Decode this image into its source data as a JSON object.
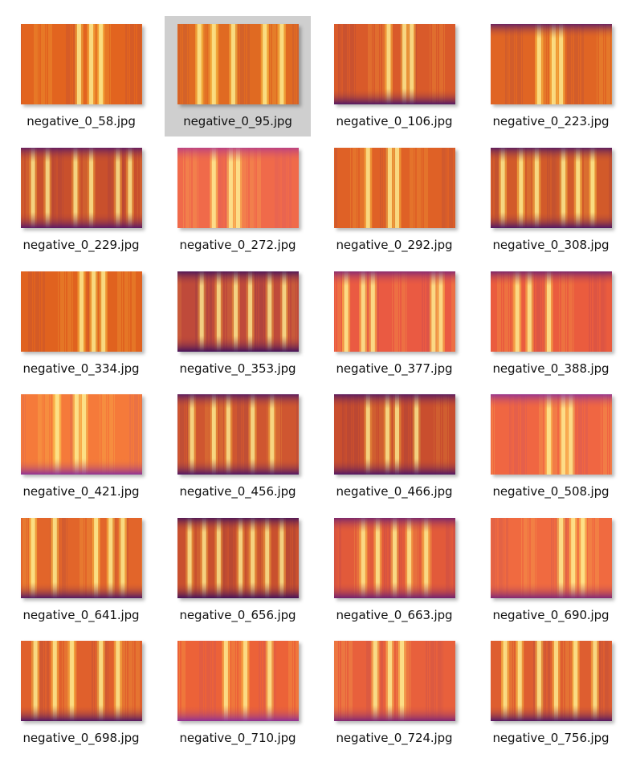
{
  "window": {
    "view": "large-icons-thumbnail-grid"
  },
  "files": [
    {
      "name": "negative_0_58.jpg",
      "selected": false,
      "thumbnail_icon": "spectrogram-thumbnail-icon",
      "palette": {
        "base": "#e2641f",
        "bright": "#ffd24a",
        "dark": "#6a1f6e"
      },
      "bands": [
        0.48,
        0.58,
        0.66
      ],
      "darkBottom": false,
      "darkTop": false
    },
    {
      "name": "negative_0_95.jpg",
      "selected": true,
      "thumbnail_icon": "spectrogram-thumbnail-icon",
      "palette": {
        "base": "#e06a22",
        "bright": "#ffd94d",
        "dark": "#6a1f6e"
      },
      "bands": [
        0.18,
        0.3,
        0.46,
        0.72,
        0.86
      ],
      "darkBottom": false,
      "darkTop": false
    },
    {
      "name": "negative_0_106.jpg",
      "selected": false,
      "thumbnail_icon": "spectrogram-thumbnail-icon",
      "palette": {
        "base": "#d95a2a",
        "bright": "#ffc842",
        "dark": "#4c1566"
      },
      "bands": [
        0.45,
        0.58,
        0.64
      ],
      "darkBottom": true,
      "darkTop": false
    },
    {
      "name": "negative_0_223.jpg",
      "selected": false,
      "thumbnail_icon": "spectrogram-thumbnail-icon",
      "palette": {
        "base": "#e06524",
        "bright": "#ffd04a",
        "dark": "#5a1a6a"
      },
      "bands": [
        0.4,
        0.52,
        0.58
      ],
      "darkBottom": false,
      "darkTop": true
    },
    {
      "name": "negative_0_229.jpg",
      "selected": false,
      "thumbnail_icon": "spectrogram-thumbnail-icon",
      "palette": {
        "base": "#c9502c",
        "bright": "#f2a93a",
        "dark": "#561668"
      },
      "bands": [
        0.1,
        0.22,
        0.45,
        0.58,
        0.8,
        0.9
      ],
      "darkBottom": true,
      "darkTop": true
    },
    {
      "name": "negative_0_272.jpg",
      "selected": false,
      "thumbnail_icon": "spectrogram-thumbnail-icon",
      "palette": {
        "base": "#f06a4a",
        "bright": "#ffe25a",
        "dark": "#b23a8c"
      },
      "bands": [
        0.3,
        0.44,
        0.5
      ],
      "darkBottom": false,
      "darkTop": true
    },
    {
      "name": "negative_0_292.jpg",
      "selected": false,
      "thumbnail_icon": "spectrogram-thumbnail-icon",
      "palette": {
        "base": "#df6126",
        "bright": "#ffc844",
        "dark": "#5c1a6a"
      },
      "bands": [
        0.28,
        0.46,
        0.52
      ],
      "darkBottom": false,
      "darkTop": false
    },
    {
      "name": "negative_0_308.jpg",
      "selected": false,
      "thumbnail_icon": "spectrogram-thumbnail-icon",
      "palette": {
        "base": "#d25a2a",
        "bright": "#ffcf48",
        "dark": "#4a1466"
      },
      "bands": [
        0.1,
        0.25,
        0.38,
        0.6,
        0.72,
        0.84
      ],
      "darkBottom": true,
      "darkTop": true
    },
    {
      "name": "negative_0_334.jpg",
      "selected": false,
      "thumbnail_icon": "spectrogram-thumbnail-icon",
      "palette": {
        "base": "#e0621f",
        "bright": "#ffd24a",
        "dark": "#6a1f6e"
      },
      "bands": [
        0.5,
        0.6,
        0.68
      ],
      "darkBottom": false,
      "darkTop": false
    },
    {
      "name": "negative_0_353.jpg",
      "selected": false,
      "thumbnail_icon": "spectrogram-thumbnail-icon",
      "palette": {
        "base": "#bf4a3a",
        "bright": "#f2a83c",
        "dark": "#3e0f5c"
      },
      "bands": [
        0.2,
        0.34,
        0.48,
        0.6,
        0.76,
        0.88
      ],
      "darkBottom": true,
      "darkTop": true
    },
    {
      "name": "negative_0_377.jpg",
      "selected": false,
      "thumbnail_icon": "spectrogram-thumbnail-icon",
      "palette": {
        "base": "#ea5a42",
        "bright": "#ffd24a",
        "dark": "#7a2478"
      },
      "bands": [
        0.1,
        0.24,
        0.32,
        0.82,
        0.88
      ],
      "darkBottom": false,
      "darkTop": true
    },
    {
      "name": "negative_0_388.jpg",
      "selected": false,
      "thumbnail_icon": "spectrogram-thumbnail-icon",
      "palette": {
        "base": "#ea5c3e",
        "bright": "#ffd44c",
        "dark": "#6a1e72"
      },
      "bands": [
        0.22,
        0.32,
        0.48
      ],
      "darkBottom": false,
      "darkTop": true
    },
    {
      "name": "negative_0_421.jpg",
      "selected": false,
      "thumbnail_icon": "spectrogram-thumbnail-icon",
      "palette": {
        "base": "#f57a3a",
        "bright": "#ffe45a",
        "dark": "#8a2e9a"
      },
      "bands": [
        0.3,
        0.46,
        0.52
      ],
      "darkBottom": true,
      "darkTop": false
    },
    {
      "name": "negative_0_456.jpg",
      "selected": false,
      "thumbnail_icon": "spectrogram-thumbnail-icon",
      "palette": {
        "base": "#cf5630",
        "bright": "#f7b63e",
        "dark": "#4a1466"
      },
      "bands": [
        0.12,
        0.3,
        0.42,
        0.62,
        0.78
      ],
      "darkBottom": true,
      "darkTop": true
    },
    {
      "name": "negative_0_466.jpg",
      "selected": false,
      "thumbnail_icon": "spectrogram-thumbnail-icon",
      "palette": {
        "base": "#c94e2e",
        "bright": "#f4ae3c",
        "dark": "#4a1466"
      },
      "bands": [
        0.28,
        0.44,
        0.52,
        0.68
      ],
      "darkBottom": true,
      "darkTop": true
    },
    {
      "name": "negative_0_508.jpg",
      "selected": false,
      "thumbnail_icon": "spectrogram-thumbnail-icon",
      "palette": {
        "base": "#f06642",
        "bright": "#ffe25a",
        "dark": "#8a2e9a"
      },
      "bands": [
        0.48,
        0.6,
        0.66
      ],
      "darkBottom": false,
      "darkTop": true
    },
    {
      "name": "negative_0_641.jpg",
      "selected": false,
      "thumbnail_icon": "spectrogram-thumbnail-icon",
      "palette": {
        "base": "#e2652a",
        "bright": "#ffd84c",
        "dark": "#4c1566"
      },
      "bands": [
        0.1,
        0.28,
        0.62,
        0.74,
        0.84
      ],
      "darkBottom": true,
      "darkTop": false
    },
    {
      "name": "negative_0_656.jpg",
      "selected": false,
      "thumbnail_icon": "spectrogram-thumbnail-icon",
      "palette": {
        "base": "#c9502e",
        "bright": "#f4ae3e",
        "dark": "#3e0f5c"
      },
      "bands": [
        0.1,
        0.22,
        0.34,
        0.52,
        0.62,
        0.74,
        0.86
      ],
      "darkBottom": true,
      "darkTop": true
    },
    {
      "name": "negative_0_663.jpg",
      "selected": false,
      "thumbnail_icon": "spectrogram-thumbnail-icon",
      "palette": {
        "base": "#e25a3a",
        "bright": "#ffd04c",
        "dark": "#6a1e72"
      },
      "bands": [
        0.24,
        0.36,
        0.5,
        0.62,
        0.76
      ],
      "darkBottom": true,
      "darkTop": true
    },
    {
      "name": "negative_0_690.jpg",
      "selected": false,
      "thumbnail_icon": "spectrogram-thumbnail-icon",
      "palette": {
        "base": "#f06a40",
        "bright": "#ffe25a",
        "dark": "#7a2478"
      },
      "bands": [
        0.58,
        0.68,
        0.76
      ],
      "darkBottom": true,
      "darkTop": false
    },
    {
      "name": "negative_0_698.jpg",
      "selected": false,
      "thumbnail_icon": "spectrogram-thumbnail-icon",
      "palette": {
        "base": "#e0602c",
        "bright": "#ffd24a",
        "dark": "#4c1566"
      },
      "bands": [
        0.12,
        0.28,
        0.42,
        0.66,
        0.8
      ],
      "darkBottom": true,
      "darkTop": false
    },
    {
      "name": "negative_0_710.jpg",
      "selected": false,
      "thumbnail_icon": "spectrogram-thumbnail-icon",
      "palette": {
        "base": "#ec6238",
        "bright": "#ffd84c",
        "dark": "#8a2e9a"
      },
      "bands": [
        0.4,
        0.56,
        0.76
      ],
      "darkBottom": true,
      "darkTop": false
    },
    {
      "name": "negative_0_724.jpg",
      "selected": false,
      "thumbnail_icon": "spectrogram-thumbnail-icon",
      "palette": {
        "base": "#e8603c",
        "bright": "#ffe05a",
        "dark": "#7a2478"
      },
      "bands": [
        0.34,
        0.46,
        0.56
      ],
      "darkBottom": true,
      "darkTop": false
    },
    {
      "name": "negative_0_756.jpg",
      "selected": false,
      "thumbnail_icon": "spectrogram-thumbnail-icon",
      "palette": {
        "base": "#de5e30",
        "bright": "#ffd24a",
        "dark": "#4c1566"
      },
      "bands": [
        0.12,
        0.24,
        0.4,
        0.54,
        0.7,
        0.86
      ],
      "darkBottom": true,
      "darkTop": false
    }
  ]
}
